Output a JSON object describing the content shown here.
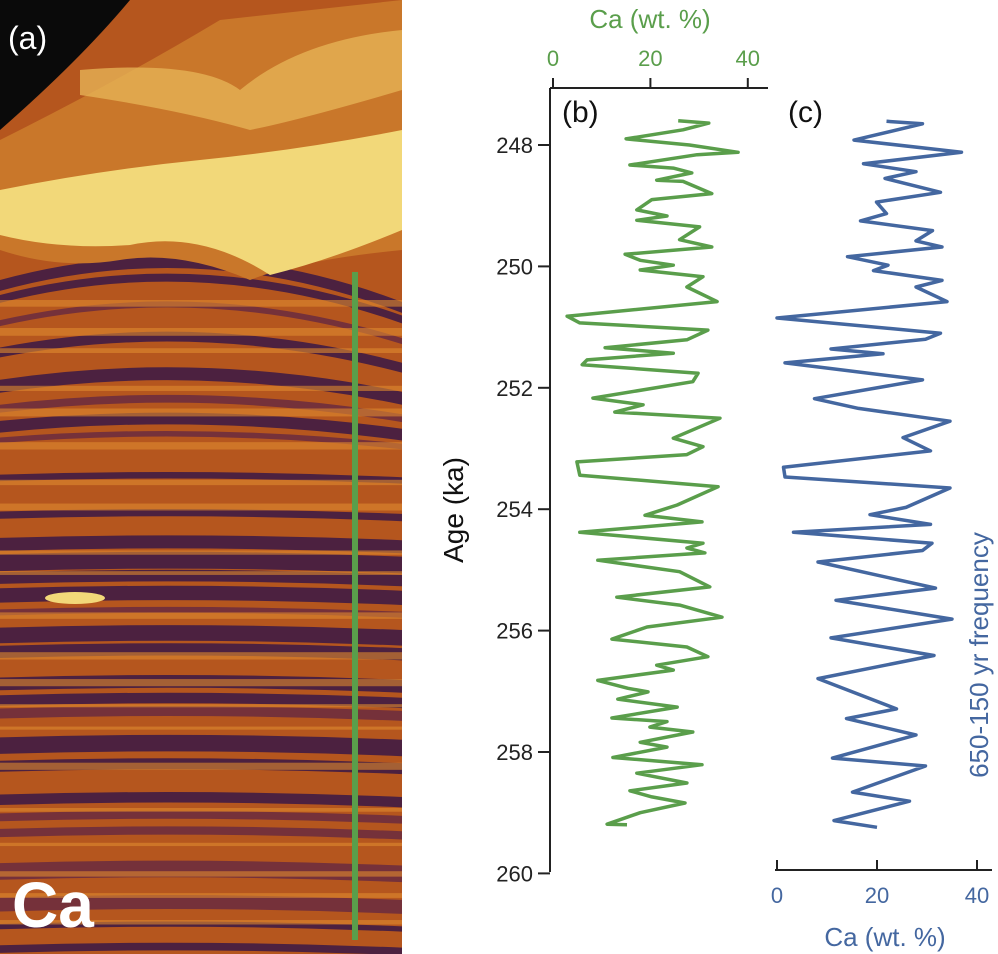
{
  "panel_a": {
    "label": "(a)",
    "element_label": "Ca",
    "transect_color": "#5a9e4b"
  },
  "colors": {
    "green": "#5a9e4b",
    "blue": "#4467a0"
  },
  "chart_data": [
    {
      "type": "line",
      "panel_label": "(b)",
      "xlabel": "Ca (wt. %)",
      "ylabel": "Age (ka)",
      "x_axis_position": "top",
      "xlim": [
        0,
        44
      ],
      "ylim": [
        247,
        260
      ],
      "x_ticks": [
        0,
        20,
        40
      ],
      "y_ticks": [
        248,
        250,
        252,
        254,
        256,
        258,
        260
      ],
      "grid": false,
      "series": [
        {
          "name": "Ca",
          "color": "#5a9e4b",
          "age": [
            247.6,
            247.64,
            247.75,
            247.9,
            248.0,
            248.12,
            248.16,
            248.33,
            248.38,
            248.46,
            248.58,
            248.6,
            248.8,
            248.9,
            249.07,
            249.17,
            249.24,
            249.35,
            249.56,
            249.68,
            249.8,
            249.9,
            249.98,
            250.06,
            250.17,
            250.34,
            250.58,
            250.82,
            250.93,
            251.05,
            251.21,
            251.34,
            251.43,
            251.54,
            251.62,
            251.76,
            251.9,
            252.17,
            252.28,
            252.4,
            252.5,
            252.83,
            252.97,
            253.1,
            253.22,
            253.44,
            253.63,
            253.93,
            254.1,
            254.21,
            254.38,
            254.56,
            254.64,
            254.72,
            254.84,
            255.03,
            255.28,
            255.45,
            255.58,
            255.78,
            255.94,
            256.14,
            256.27,
            256.43,
            256.57,
            256.65,
            256.82,
            256.95,
            257.01,
            257.13,
            257.26,
            257.44,
            257.5,
            257.59,
            257.67,
            257.84,
            257.92,
            258.09,
            258.21,
            258.35,
            258.51,
            258.64,
            258.74,
            258.84,
            259.0,
            259.19,
            259.2
          ],
          "ca": [
            25.7,
            32,
            26.7,
            15,
            28,
            38,
            29.6,
            15.8,
            24.7,
            28.5,
            21.3,
            26.7,
            32.6,
            20.3,
            17.2,
            23.4,
            17.2,
            30.1,
            26,
            32.6,
            14.8,
            17.9,
            24.7,
            17.9,
            30.8,
            27.5,
            33.7,
            2.9,
            5.5,
            31.8,
            27.5,
            10.7,
            24.7,
            7,
            6,
            29.8,
            28.7,
            8.2,
            18.5,
            12.7,
            34.3,
            24.7,
            30.8,
            27.5,
            4.9,
            5.5,
            33.9,
            25.5,
            18.9,
            30.6,
            5.5,
            30.8,
            27.5,
            31.2,
            9.2,
            26,
            32.2,
            13.1,
            26,
            34.7,
            19.3,
            12.1,
            27.5,
            31.8,
            21.3,
            24.7,
            9.2,
            15.4,
            19.5,
            13.3,
            25.5,
            12.1,
            23.4,
            19.9,
            28.7,
            17.9,
            23.4,
            12.3,
            30.6,
            17.2,
            27.5,
            15.8,
            20.3,
            27.1,
            17.9,
            11.1,
            15.2
          ]
        }
      ]
    },
    {
      "type": "line",
      "panel_label": "(c)",
      "xlabel": "Ca (wt. %)",
      "annotation": "650-150 yr frequency",
      "x_axis_position": "bottom",
      "xlim": [
        0,
        44
      ],
      "ylim": [
        247,
        260
      ],
      "x_ticks": [
        0,
        20,
        40
      ],
      "grid": false,
      "series": [
        {
          "name": "Ca filtered 650-150 yr",
          "color": "#4467a0",
          "age": [
            247.61,
            247.65,
            247.92,
            248.12,
            248.31,
            248.44,
            248.55,
            248.78,
            248.94,
            249.13,
            249.25,
            249.41,
            249.58,
            249.68,
            249.84,
            249.98,
            250.07,
            250.23,
            250.34,
            250.58,
            250.85,
            251.1,
            251.2,
            251.36,
            251.44,
            251.59,
            251.87,
            252.18,
            252.34,
            252.55,
            252.82,
            253.04,
            253.31,
            253.47,
            253.65,
            253.97,
            254.09,
            254.25,
            254.38,
            254.56,
            254.68,
            254.87,
            255.3,
            255.5,
            255.81,
            256.12,
            256.41,
            256.79,
            257.29,
            257.45,
            257.72,
            258.1,
            258.23,
            258.66,
            258.81,
            259.13,
            259.24
          ],
          "ca": [
            21.9,
            29.1,
            15.4,
            36.9,
            17.3,
            27.8,
            21.6,
            32.7,
            19.9,
            21.9,
            16.7,
            31.1,
            27.8,
            33,
            14.1,
            22.2,
            19.3,
            33,
            27.8,
            34,
            0,
            32.7,
            29.7,
            10.8,
            21.2,
            1.6,
            29.1,
            7.5,
            16.3,
            34.6,
            25.2,
            30.7,
            1.3,
            1.6,
            34.6,
            25.8,
            18.6,
            30.7,
            3.3,
            31,
            29.1,
            8.2,
            31.7,
            11.8,
            35,
            10.8,
            31.4,
            8.2,
            23.9,
            13.9,
            27.8,
            11.1,
            29.7,
            15.1,
            26.5,
            11.4,
            20
          ]
        }
      ]
    }
  ]
}
